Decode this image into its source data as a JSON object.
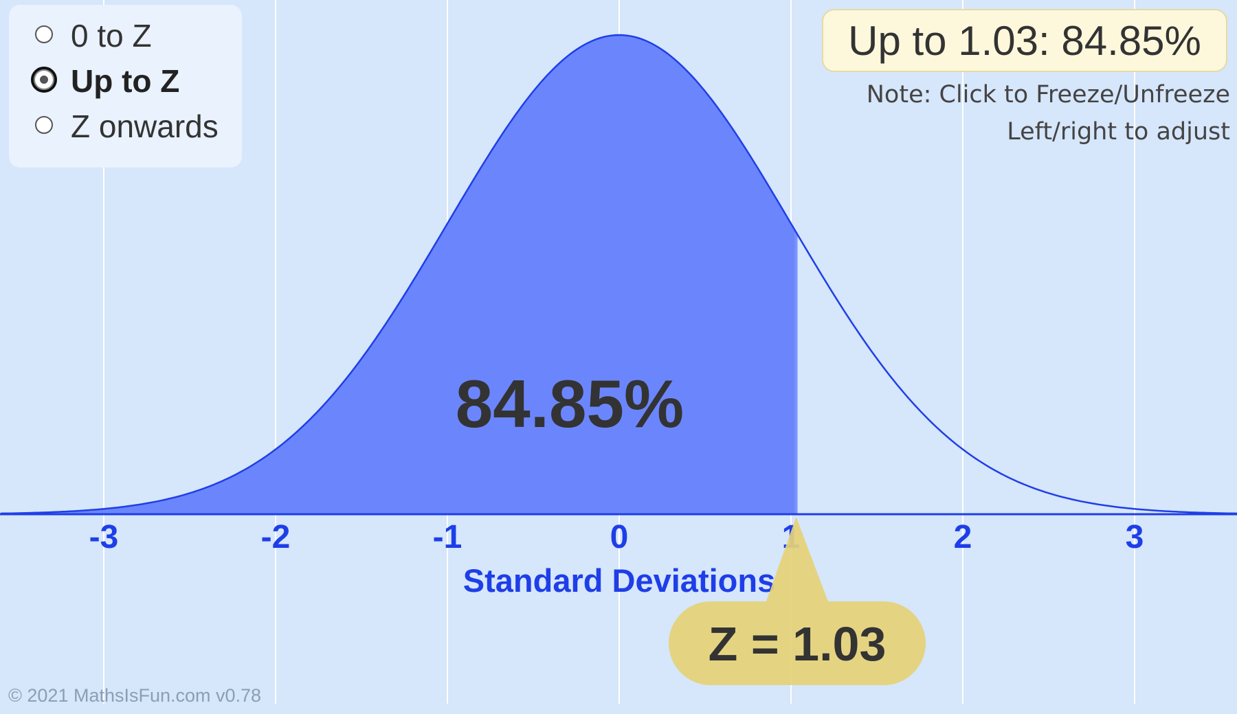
{
  "modes": [
    {
      "label": "0 to Z",
      "selected": false
    },
    {
      "label": "Up to Z",
      "selected": true
    },
    {
      "label": "Z onwards",
      "selected": false
    }
  ],
  "result_text": "Up to 1.03: 84.85%",
  "note_line1": "Note: Click to Freeze/Unfreeze",
  "note_line2": "Left/right to adjust",
  "copyright": "© 2021 MathsIsFun.com v0.78",
  "colors": {
    "background": "#d6e6fb",
    "curve": "#1f3fe6",
    "fill": "#6b86fd",
    "axis_text": "#1e3ee8",
    "callout": "#e5d277",
    "big_text": "#333333"
  },
  "chart_data": {
    "type": "area",
    "distribution": "standard normal",
    "xlabel": "Standard Deviations",
    "x_ticks": [
      -3,
      -2,
      -1,
      0,
      1,
      2,
      3
    ],
    "x_tick_labels": [
      "-3",
      "-2",
      "-1",
      "0",
      "1",
      "2",
      "3"
    ],
    "xlim": [
      -3.6,
      3.6
    ],
    "grid": true,
    "z": 1.03,
    "shaded_region": "up to z",
    "area_label": "84.85%",
    "z_label": "Z = 1.03"
  }
}
